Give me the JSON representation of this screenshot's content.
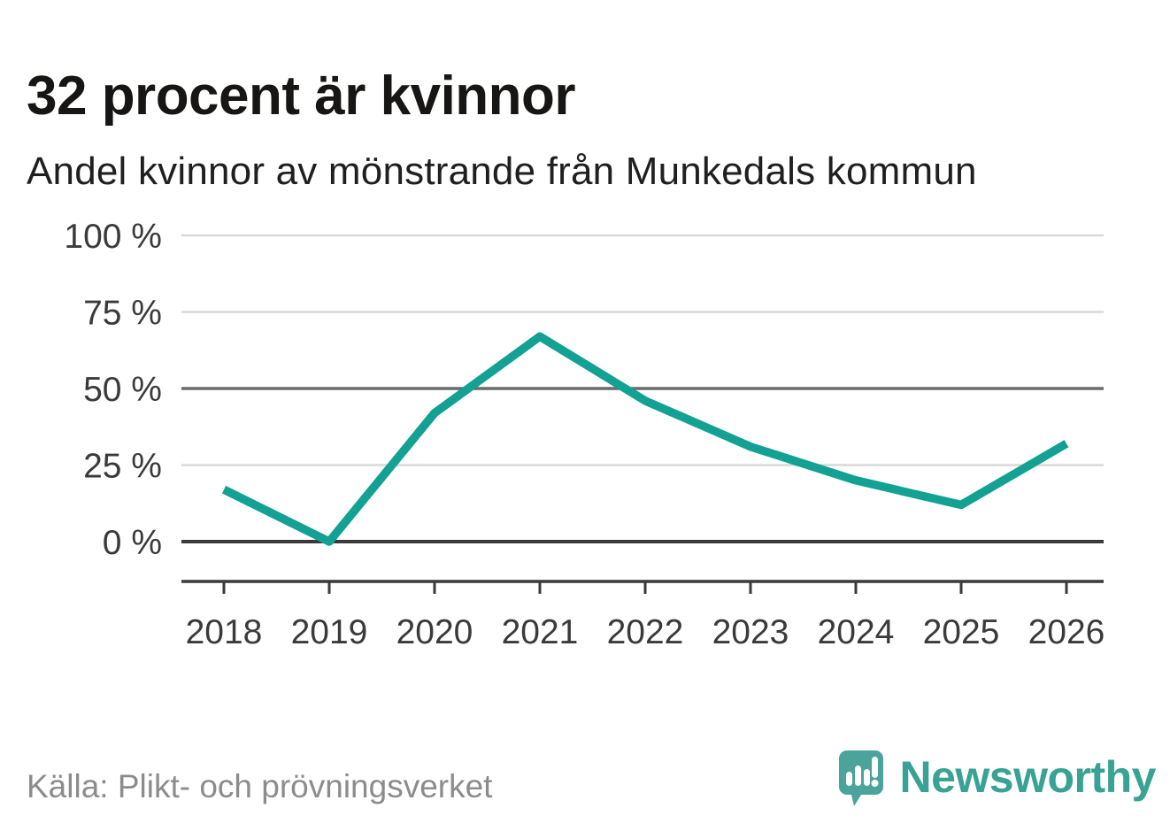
{
  "title": "32 procent är kvinnor",
  "subtitle": "Andel kvinnor av mönstrande från Munkedals kommun",
  "source": "Källa: Plikt- och prövningsverket",
  "brand": {
    "name": "Newsworthy",
    "logo_icon": "speech-bubble-bar-chart-exclamation-icon",
    "text_color": "#38a294",
    "logo_color": "#4ba39b"
  },
  "colors": {
    "line": "#12a192",
    "grid_light": "#d9d9d9",
    "grid_mid": "#6b6b6b",
    "grid_zero": "#3a3a3a",
    "axis": "#3a3a3a",
    "tick_label": "#3a3a3a"
  },
  "chart_data": {
    "type": "line",
    "title": "32 procent är kvinnor",
    "subtitle": "Andel kvinnor av mönstrande från Munkedals kommun",
    "x": [
      2018,
      2019,
      2020,
      2021,
      2022,
      2023,
      2024,
      2025,
      2026
    ],
    "x_labels": [
      "2018",
      "2019",
      "2020",
      "2021",
      "2022",
      "2023",
      "2024",
      "2025",
      "2026"
    ],
    "series": [
      {
        "name": "Andel kvinnor av mönstrande, Munkedals kommun",
        "values": [
          17,
          0,
          42,
          67,
          46,
          31,
          20,
          12,
          32
        ]
      }
    ],
    "unit": "%",
    "ylim": [
      0,
      100
    ],
    "yticks": [
      0,
      25,
      50,
      75,
      100
    ],
    "ytick_labels": [
      "0 %",
      "25 %",
      "50 %",
      "75 %",
      "100 %"
    ],
    "emphasized_gridlines": [
      0,
      50
    ],
    "grid": "horizontal",
    "legend": "none",
    "source": "Källa: Plikt- och prövningsverket"
  }
}
